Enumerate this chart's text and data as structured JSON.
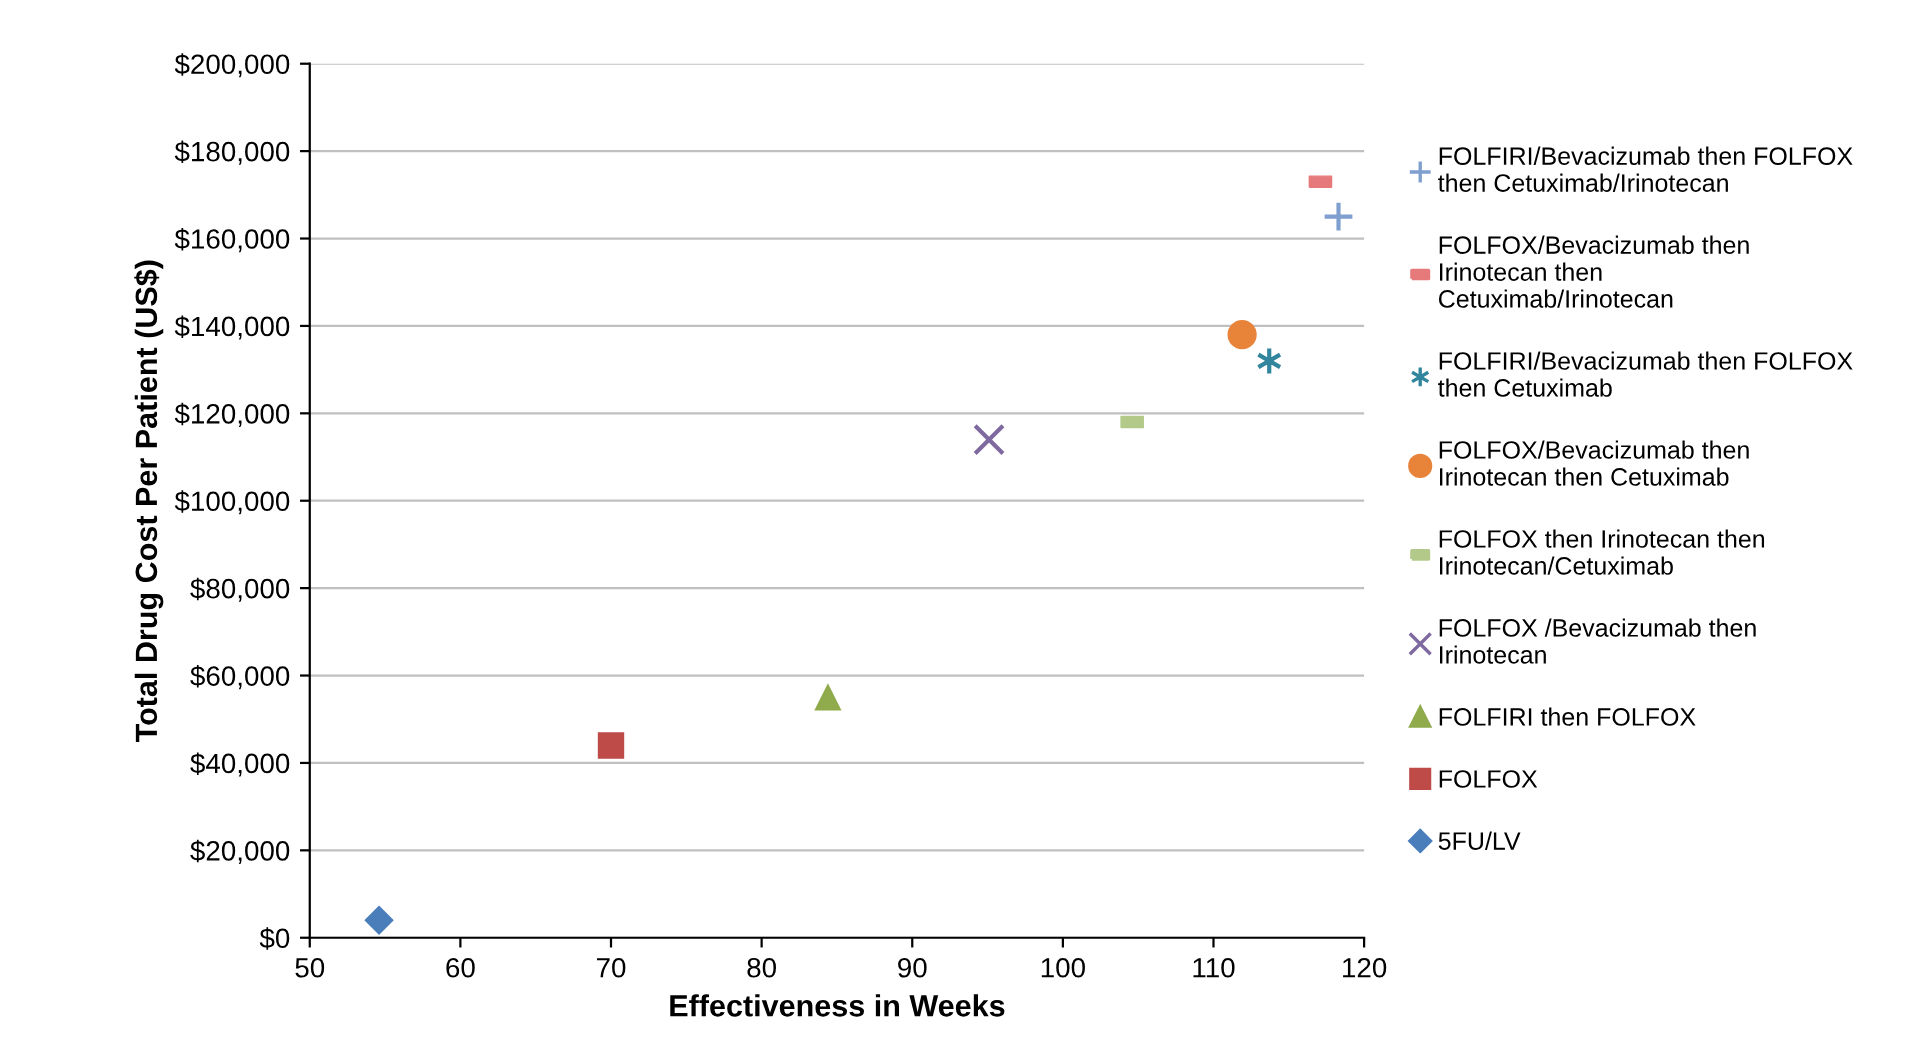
{
  "chart_data": {
    "type": "scatter",
    "xlabel": "Effectiveness in Weeks",
    "ylabel": "Total Drug Cost Per Patient (US$)",
    "xlim": [
      50,
      120
    ],
    "xticks": [
      50,
      60,
      70,
      80,
      90,
      100,
      110,
      120
    ],
    "ylim": [
      0,
      200000
    ],
    "yticks": [
      {
        "value": 0,
        "label": "$0"
      },
      {
        "value": 20000,
        "label": "$20,000"
      },
      {
        "value": 40000,
        "label": "$40,000"
      },
      {
        "value": 60000,
        "label": "$60,000"
      },
      {
        "value": 80000,
        "label": "$80,000"
      },
      {
        "value": 100000,
        "label": "$100,000"
      },
      {
        "value": 120000,
        "label": "$120,000"
      },
      {
        "value": 140000,
        "label": "$140,000"
      },
      {
        "value": 160000,
        "label": "$160,000"
      },
      {
        "value": 180000,
        "label": "$180,000"
      },
      {
        "value": 200000,
        "label": "$200,000"
      }
    ],
    "grid": "y",
    "legend": "right",
    "series": [
      {
        "name": "FOLFIRI/Bevacizumab then FOLFOX then Cetuximab/Irinotecan",
        "color": "#7f9fcf",
        "marker": "plus",
        "x": [
          118.3
        ],
        "values": [
          165000
        ]
      },
      {
        "name": "FOLFOX/Bevacizumab then Irinotecan then Cetuximab/Irinotecan",
        "color": "#e6797a",
        "marker": "square",
        "x": [
          117.1
        ],
        "values": [
          173000
        ]
      },
      {
        "name": "FOLFIRI/Bevacizumab then FOLFOX then Cetuximab",
        "color": "#31859c",
        "marker": "cross",
        "x": [
          113.7
        ],
        "values": [
          132000
        ]
      },
      {
        "name": "FOLFOX/Bevacizumab then Irinotecan then Cetuximab",
        "color": "#e8833a",
        "marker": "circle",
        "x": [
          111.9
        ],
        "values": [
          138000
        ]
      },
      {
        "name": "FOLFOX then Irinotecan then Irinotecan/Cetuximab",
        "color": "#b3c98a",
        "marker": "square",
        "x": [
          104.6
        ],
        "values": [
          118000
        ]
      },
      {
        "name": "FOLFOX /Bevacizumab then Irinotecan",
        "color": "#7f6aa0",
        "marker": "cross",
        "x": [
          95.1
        ],
        "values": [
          114000
        ]
      },
      {
        "name": "FOLFIRI then FOLFOX",
        "color": "#8fab4c",
        "marker": "triangle",
        "x": [
          84.4
        ],
        "values": [
          55000
        ]
      },
      {
        "name": "FOLFOX",
        "color": "#be4b48",
        "marker": "square",
        "x": [
          70
        ],
        "values": [
          44000
        ]
      },
      {
        "name": "5FU/LV",
        "color": "#4a7ebb",
        "marker": "diamond",
        "x": [
          54.6
        ],
        "values": [
          4000
        ]
      }
    ]
  }
}
